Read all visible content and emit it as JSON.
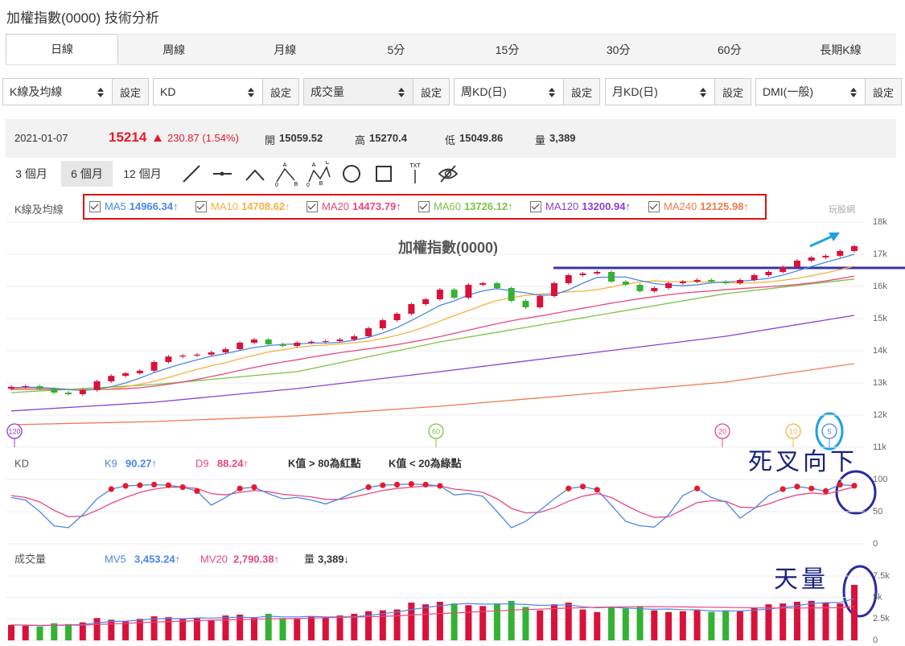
{
  "header": {
    "title": "加權指數(0000) 技術分析",
    "watermark": "玩股網"
  },
  "tabs": [
    "日線",
    "周線",
    "月線",
    "5分",
    "15分",
    "30分",
    "60分",
    "長期K線"
  ],
  "selectors": [
    {
      "value": "K線及均線",
      "button": "設定"
    },
    {
      "value": "KD",
      "button": "設定"
    },
    {
      "value": "成交量",
      "button": "設定"
    },
    {
      "value": "周KD(日)",
      "button": "設定"
    },
    {
      "value": "月KD(日)",
      "button": "設定"
    },
    {
      "value": "DMI(一般)",
      "button": "設定"
    }
  ],
  "quote": {
    "date": "2021-01-07",
    "price": "15214",
    "change": "230.87 (1.54%)",
    "open_label": "開",
    "open": "15059.52",
    "high_label": "高",
    "high": "15270.4",
    "low_label": "低",
    "low": "15049.86",
    "volume_label": "量",
    "volume": "3,389"
  },
  "ranges": [
    "3 個月",
    "6 個月",
    "12 個月"
  ],
  "tools_text": [
    "A",
    "0",
    "B",
    "A",
    "C",
    "0",
    "B",
    "TXT"
  ],
  "annotations": {
    "kd": "死叉向下",
    "volume": "天量"
  },
  "chart_data": [
    {
      "type": "candlestick",
      "title": "加權指數(0000)",
      "panel_label": "K線及均線",
      "up_color": "#d8123c",
      "down_color": "#34b233",
      "open": [
        12820,
        12880,
        12900,
        12820,
        12700,
        12650,
        12780,
        13050,
        13220,
        13300,
        13380,
        13650,
        13820,
        13850,
        13880,
        13950,
        14050,
        14250,
        14350,
        14200,
        14150,
        14250,
        14280,
        14300,
        14350,
        14450,
        14700,
        14950,
        15150,
        15450,
        15600,
        15900,
        15650,
        16050,
        16100,
        15950,
        15550,
        15350,
        15700,
        16100,
        16350,
        16400,
        16450,
        16150,
        16050,
        15850,
        15950,
        16100,
        16150,
        16200,
        16150,
        16100,
        16200,
        16350,
        16450,
        16600,
        16800,
        16900,
        16950,
        17100
      ],
      "high": [
        12930,
        12950,
        12950,
        12870,
        12750,
        12830,
        13100,
        13270,
        13350,
        13430,
        13700,
        13870,
        13900,
        13930,
        14000,
        14100,
        14300,
        14400,
        14400,
        14250,
        14300,
        14330,
        14350,
        14400,
        14500,
        14750,
        15000,
        15200,
        15500,
        15650,
        15950,
        15950,
        16100,
        16150,
        16150,
        16000,
        15600,
        15750,
        16150,
        16400,
        16450,
        16500,
        16500,
        16200,
        16100,
        16000,
        16150,
        16200,
        16250,
        16250,
        16200,
        16250,
        16400,
        16500,
        16650,
        16850,
        16950,
        17000,
        17150,
        17300
      ],
      "low": [
        12770,
        12830,
        12770,
        12650,
        12600,
        12600,
        12730,
        13000,
        13170,
        13250,
        13330,
        13600,
        13770,
        13800,
        13830,
        13900,
        14000,
        14200,
        14150,
        14100,
        14100,
        14200,
        14230,
        14250,
        14300,
        14400,
        14650,
        14900,
        15100,
        15400,
        15550,
        15600,
        15600,
        16000,
        15900,
        15500,
        15300,
        15300,
        15650,
        16050,
        16300,
        16350,
        16100,
        16000,
        15800,
        15800,
        15900,
        16050,
        16100,
        16100,
        16050,
        16050,
        16150,
        16300,
        16400,
        16550,
        16750,
        16850,
        16900,
        17050
      ],
      "close": [
        12880,
        12900,
        12820,
        12700,
        12650,
        12780,
        13050,
        13220,
        13300,
        13380,
        13650,
        13820,
        13850,
        13880,
        13950,
        14050,
        14250,
        14350,
        14200,
        14150,
        14250,
        14280,
        14300,
        14350,
        14450,
        14700,
        14950,
        15150,
        15450,
        15600,
        15900,
        15650,
        16050,
        16100,
        15950,
        15550,
        15350,
        15700,
        16100,
        16350,
        16400,
        16450,
        16150,
        16050,
        15850,
        15950,
        16100,
        16150,
        16200,
        16150,
        16100,
        16200,
        16350,
        16450,
        16600,
        16800,
        16900,
        16950,
        17100,
        17250
      ],
      "lines": [
        {
          "name": "MA5",
          "value_text": "14966.34↑",
          "color": "#4a86e8",
          "values": [
            12850,
            12870,
            12860,
            12830,
            12790,
            12770,
            12800,
            12880,
            13000,
            13150,
            13320,
            13470,
            13600,
            13720,
            13830,
            13910,
            14010,
            14100,
            14160,
            14200,
            14210,
            14240,
            14240,
            14260,
            14330,
            14420,
            14550,
            14720,
            14940,
            15170,
            15410,
            15550,
            15730,
            15860,
            15930,
            15860,
            15800,
            15720,
            15740,
            15890,
            16100,
            16280,
            16290,
            16290,
            16180,
            16090,
            16040,
            16020,
            16050,
            16110,
            16140,
            16160,
            16200,
            16250,
            16350,
            16480,
            16620,
            16750,
            16870,
            17000
          ]
        },
        {
          "name": "MA10",
          "value_text": "14708.62↑",
          "color": "#f5b042",
          "values": [
            12830,
            12840,
            12840,
            12830,
            12810,
            12790,
            12790,
            12820,
            12880,
            12960,
            13050,
            13170,
            13300,
            13420,
            13530,
            13630,
            13750,
            13860,
            13960,
            14030,
            14100,
            14150,
            14180,
            14210,
            14250,
            14300,
            14380,
            14480,
            14600,
            14750,
            14920,
            15090,
            15250,
            15420,
            15560,
            15650,
            15720,
            15760,
            15800,
            15830,
            15850,
            15900,
            15980,
            16070,
            16140,
            16170,
            16150,
            16150,
            16140,
            16130,
            16120,
            16100,
            16110,
            16140,
            16190,
            16250,
            16330,
            16420,
            16520,
            16630
          ]
        },
        {
          "name": "MA20",
          "value_text": "14473.79↑",
          "color": "#e9477e",
          "values": [
            12800,
            12800,
            12800,
            12800,
            12800,
            12790,
            12790,
            12800,
            12820,
            12850,
            12900,
            12960,
            13030,
            13110,
            13200,
            13290,
            13390,
            13480,
            13570,
            13650,
            13720,
            13800,
            13870,
            13940,
            14000,
            14060,
            14120,
            14190,
            14270,
            14350,
            14440,
            14540,
            14640,
            14740,
            14840,
            14930,
            15010,
            15080,
            15160,
            15240,
            15320,
            15400,
            15480,
            15550,
            15620,
            15680,
            15740,
            15790,
            15830,
            15860,
            15900,
            15930,
            15960,
            15990,
            16020,
            16060,
            16110,
            16170,
            16240,
            16320
          ]
        },
        {
          "name": "MA60",
          "value_text": "13726.12↑",
          "color": "#7cc242",
          "x": [
            0,
            10,
            20,
            30,
            40,
            50,
            59
          ],
          "values": [
            12700,
            12950,
            13350,
            14275,
            15025,
            15775,
            16230
          ]
        },
        {
          "name": "MA120",
          "value_text": "13200.94↑",
          "color": "#8a3fd1",
          "x": [
            0,
            10,
            20,
            30,
            40,
            50,
            59
          ],
          "values": [
            12130,
            12400,
            12825,
            13350,
            13900,
            14450,
            15100
          ]
        },
        {
          "name": "MA240",
          "value_text": "12125.98↑",
          "color": "#f07a4a",
          "x": [
            0,
            10,
            20,
            30,
            40,
            50,
            59
          ],
          "values": [
            11700,
            11800,
            11975,
            12275,
            12650,
            13025,
            13600
          ]
        }
      ],
      "period_markers": [
        {
          "label": "120",
          "color": "#8a3fd1"
        },
        {
          "label": "60",
          "color": "#7cc242"
        },
        {
          "label": "20",
          "color": "#e9477e"
        },
        {
          "label": "10",
          "color": "#f5b042"
        },
        {
          "label": "5",
          "color": "#4a86e8"
        }
      ],
      "ylim": [
        11000,
        18000
      ],
      "yticks": [
        {
          "value": 11000,
          "label": "11k"
        },
        {
          "value": 12000,
          "label": "12k"
        },
        {
          "value": 13000,
          "label": "13k"
        },
        {
          "value": 14000,
          "label": "14k"
        },
        {
          "value": 15000,
          "label": "15k"
        },
        {
          "value": 16000,
          "label": "16k"
        },
        {
          "value": 17000,
          "label": "17k"
        },
        {
          "value": 18000,
          "label": "18k"
        }
      ],
      "grid": true
    },
    {
      "type": "line",
      "panel_label": "KD",
      "series": [
        {
          "name": "K9",
          "value_text": "90.27↑",
          "color": "#4a86e8",
          "values": [
            72,
            68,
            50,
            28,
            25,
            45,
            70,
            85,
            90,
            91,
            92,
            91,
            88,
            82,
            60,
            72,
            86,
            88,
            78,
            70,
            72,
            68,
            62,
            70,
            80,
            88,
            91,
            92,
            93,
            92,
            90,
            76,
            78,
            74,
            50,
            25,
            35,
            52,
            70,
            86,
            89,
            84,
            60,
            35,
            28,
            26,
            45,
            75,
            86,
            72,
            65,
            40,
            55,
            75,
            85,
            89,
            86,
            82,
            92,
            90.27
          ]
        },
        {
          "name": "D9",
          "value_text": "88.24↑",
          "color": "#e9477e",
          "values": [
            75,
            72,
            65,
            52,
            42,
            43,
            52,
            63,
            72,
            80,
            85,
            88,
            88,
            86,
            78,
            76,
            80,
            83,
            81,
            77,
            75,
            73,
            69,
            69,
            73,
            78,
            83,
            86,
            88,
            90,
            90,
            85,
            83,
            80,
            70,
            55,
            48,
            49,
            56,
            66,
            74,
            78,
            72,
            60,
            49,
            41,
            42,
            53,
            64,
            67,
            66,
            57,
            56,
            62,
            70,
            76,
            79,
            77,
            83,
            88.24
          ]
        }
      ],
      "notes": [
        "K值 > 80為紅點",
        "K值 < 20為綠點"
      ],
      "dot_above": 80,
      "dot_below": 20,
      "dot_above_color": "#e8192c",
      "dot_below_color": "#34b233",
      "ylim": [
        0,
        100
      ],
      "yticks": [
        0,
        50,
        100
      ],
      "grid": true
    },
    {
      "type": "bar",
      "panel_label": "成交量",
      "values": [
        1800,
        1700,
        1600,
        2000,
        1900,
        2100,
        2600,
        2400,
        2200,
        2500,
        2800,
        2700,
        2500,
        2600,
        2400,
        2900,
        3000,
        2700,
        3100,
        2600,
        2500,
        2800,
        2700,
        2900,
        3100,
        3400,
        3500,
        3600,
        4400,
        4200,
        4500,
        4300,
        4100,
        4000,
        4300,
        4600,
        3900,
        3500,
        4200,
        4400,
        3600,
        3300,
        3800,
        3700,
        4000,
        3500,
        3300,
        3400,
        3600,
        3300,
        3500,
        3400,
        3800,
        4200,
        4300,
        4500,
        4600,
        4400,
        4300,
        6470
      ],
      "series": [
        {
          "name": "MV5",
          "value_text": "3,453.24↑",
          "color": "#4a86e8",
          "values": [
            1800,
            1760,
            1710,
            1770,
            1800,
            1860,
            2040,
            2200,
            2240,
            2360,
            2500,
            2540,
            2520,
            2620,
            2600,
            2660,
            2700,
            2640,
            2820,
            2740,
            2740,
            2800,
            2740,
            2740,
            2760,
            2900,
            3120,
            3300,
            3600,
            3820,
            4040,
            4200,
            4300,
            4220,
            4240,
            4260,
            4180,
            4080,
            4100,
            4140,
            3920,
            3800,
            3860,
            3760,
            3680,
            3620,
            3660,
            3580,
            3560,
            3420,
            3420,
            3440,
            3520,
            3640,
            3840,
            4040,
            4280,
            4400,
            4420,
            4854
          ]
        },
        {
          "name": "MV20",
          "value_text": "2,790.38↑",
          "color": "#e9477e",
          "values": [
            1800,
            1780,
            1740,
            1740,
            1760,
            1780,
            1850,
            1920,
            1990,
            2060,
            2130,
            2190,
            2240,
            2290,
            2340,
            2390,
            2430,
            2470,
            2500,
            2520,
            2560,
            2600,
            2640,
            2680,
            2700,
            2750,
            2800,
            2860,
            2950,
            3040,
            3130,
            3200,
            3280,
            3360,
            3440,
            3530,
            3590,
            3640,
            3700,
            3760,
            3820,
            3860,
            3890,
            3910,
            3930,
            3930,
            3920,
            3900,
            3880,
            3860,
            3840,
            3820,
            3790,
            3780,
            3770,
            3770,
            3780,
            3800,
            3810,
            3950
          ]
        }
      ],
      "volume_name": "量",
      "volume_text": "3,389↓",
      "ylim": [
        0,
        7500
      ],
      "yticks": [
        0,
        {
          "value": 2500,
          "label": "2.5k"
        },
        {
          "value": 5000,
          "label": "5k"
        },
        {
          "value": 7500,
          "label": "7.5k"
        }
      ],
      "grid": true
    }
  ]
}
